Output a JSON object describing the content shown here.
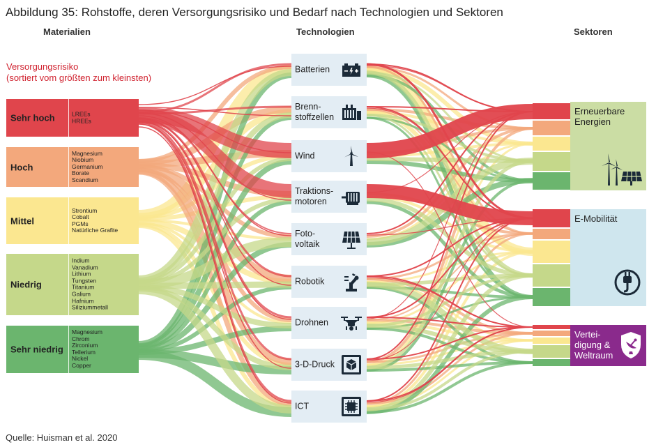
{
  "title": "Abbildung 35: Rohstoffe, deren Versorgungsrisiko und Bedarf nach Technologien und Sektoren",
  "headers": {
    "materials": "Materialien",
    "technologies": "Technologien",
    "sectors": "Sektoren"
  },
  "risk_legend": {
    "line1": "Versorgungsrisiko",
    "line2": "(sortiert vom größten zum kleinsten)"
  },
  "colors": {
    "sehr_hoch": "#e0454c",
    "hoch": "#f3a87c",
    "mittel": "#fbe790",
    "niedrig": "#c5d88a",
    "sehr_niedrig": "#6bb56e",
    "tech_bg": "#e3edf4",
    "erneuerbare_bg": "#cbdda4",
    "emob_bg": "#cfe6ee",
    "verteidigung_bg": "#8a2a8c",
    "risk_title": "#d0222f"
  },
  "risk_levels": [
    {
      "label": "Sehr hoch",
      "materials": [
        "LREEs",
        "HREEs"
      ]
    },
    {
      "label": "Hoch",
      "materials": [
        "Magnesium",
        "Niobium",
        "Germanium",
        "Borate",
        "Scandium"
      ]
    },
    {
      "label": "Mittel",
      "materials": [
        "Strontium",
        "Cobalt",
        "PGMs",
        "Natürliche Grafite"
      ]
    },
    {
      "label": "Niedrig",
      "materials": [
        "Indium",
        "Vanadium",
        "Lithium",
        "Tungsten",
        "Titanium",
        "Galium",
        "Hafnium",
        "Siliziummetall"
      ]
    },
    {
      "label": "Sehr niedrig",
      "materials": [
        "Magnesium",
        "Chrom",
        "Zirconium",
        "Tellerium",
        "Nickel",
        "Copper"
      ]
    }
  ],
  "technologies": [
    {
      "label": "Batterien",
      "icon": "battery-icon"
    },
    {
      "label": "Brenn-\nstoffzellen",
      "icon": "fuel-cell-icon"
    },
    {
      "label": "Wind",
      "icon": "wind-turbine-icon"
    },
    {
      "label": "Traktions-\nmotoren",
      "icon": "motor-icon"
    },
    {
      "label": "Foto-\nvoltaik",
      "icon": "solar-panel-icon"
    },
    {
      "label": "Robotik",
      "icon": "robot-arm-icon"
    },
    {
      "label": "Drohnen",
      "icon": "drone-icon"
    },
    {
      "label": "3-D-Druck",
      "icon": "3d-printer-icon"
    },
    {
      "label": "ICT",
      "icon": "chip-icon"
    }
  ],
  "sectors": [
    {
      "label": "Erneuerbare\nEnergien",
      "icon": "renewables-icon"
    },
    {
      "label": "E-Mobilität",
      "icon": "plug-icon"
    },
    {
      "label": "Vertei-\ndigung &\nWeltraum",
      "icon": "satellite-shield-icon"
    }
  ],
  "source": "Quelle: Huisman et al. 2020"
}
